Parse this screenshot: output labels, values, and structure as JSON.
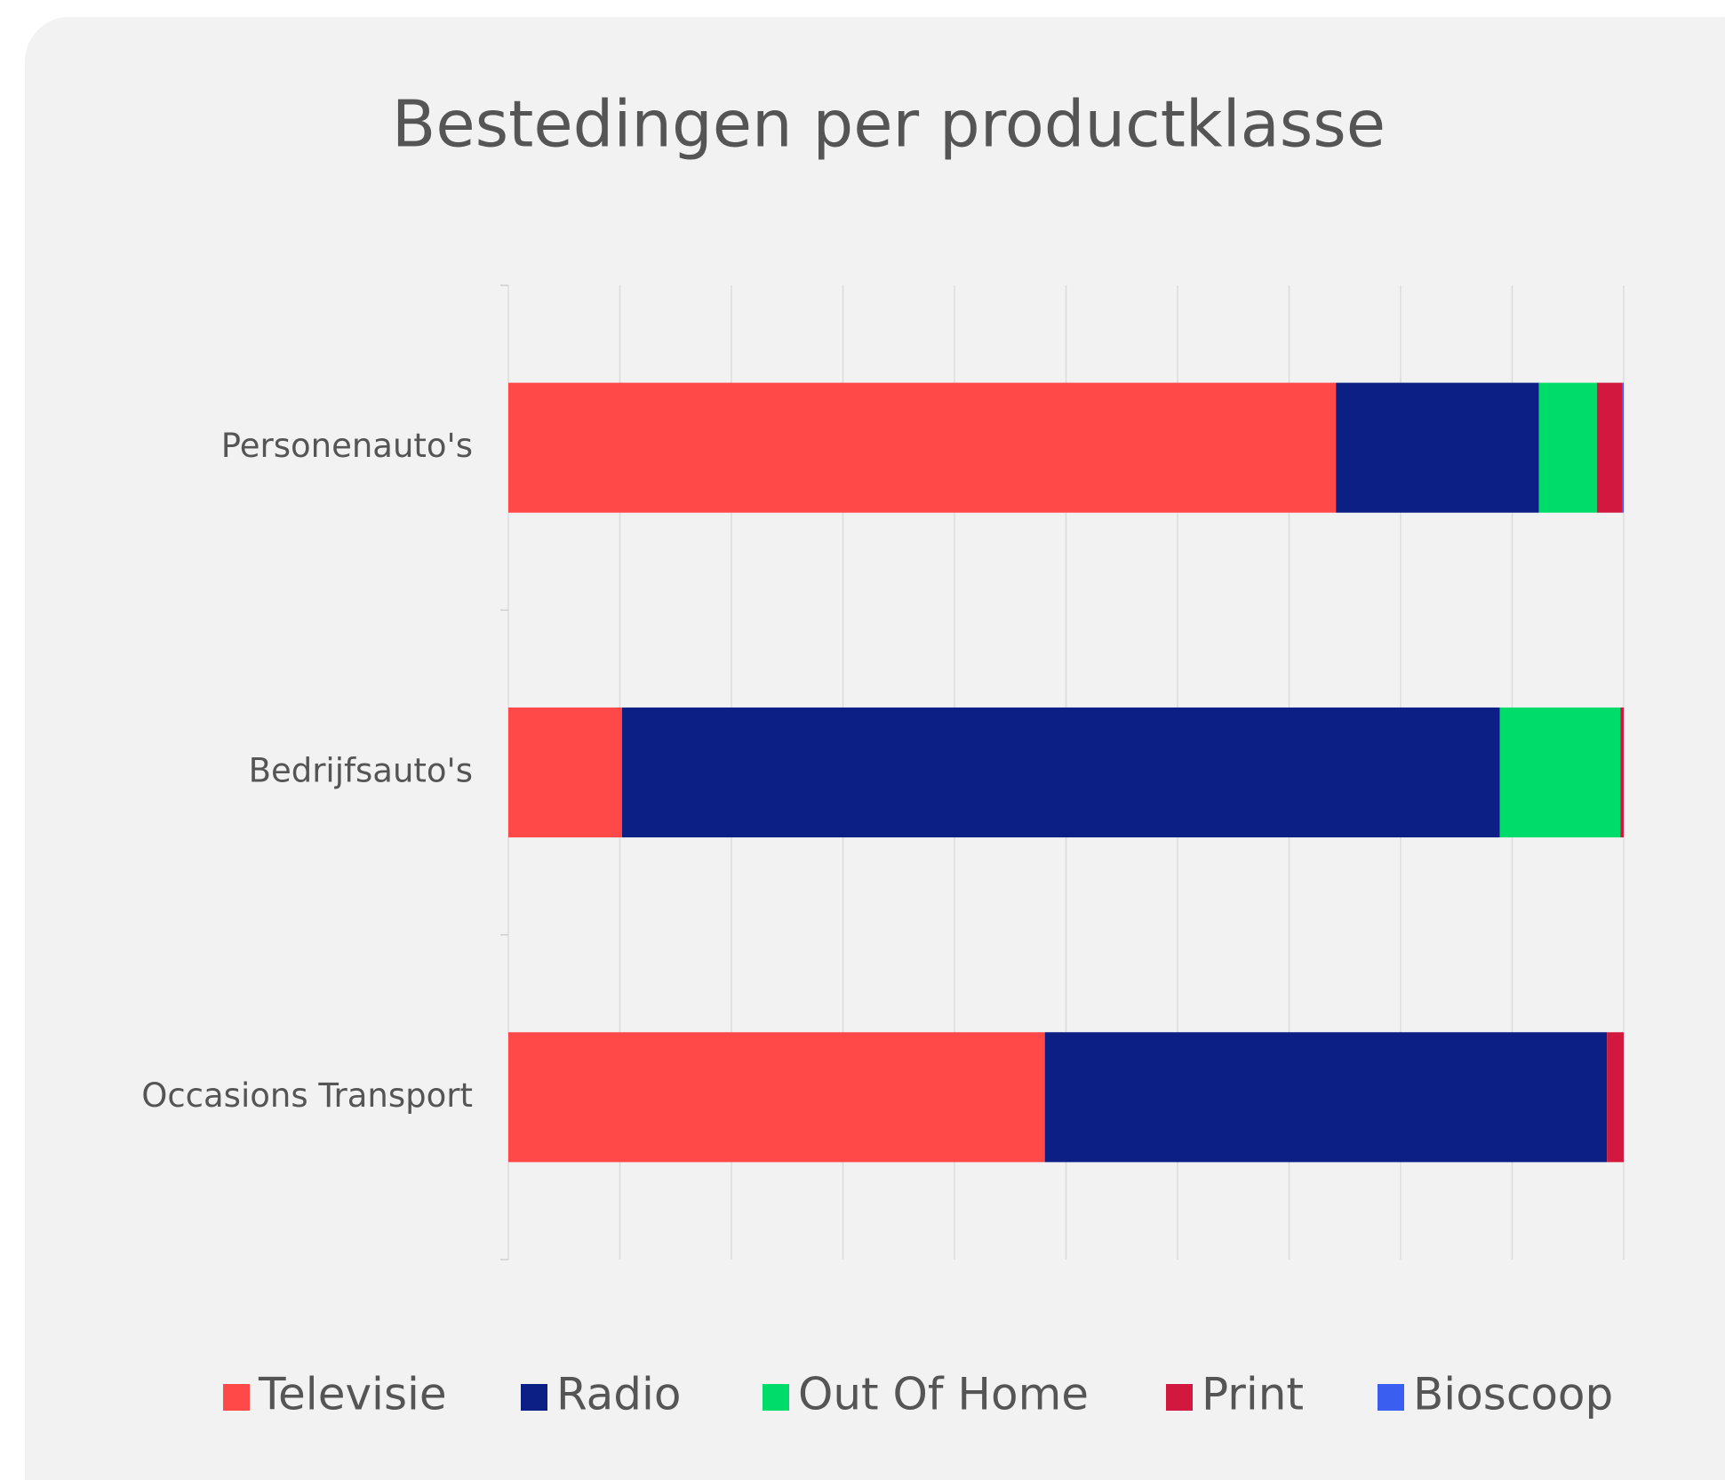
{
  "chart_data": {
    "type": "stacked_bar_horizontal",
    "title": "Bestedingen per productklasse",
    "categories": [
      "Personenauto's",
      "Bedrijfsauto's",
      "Occasions Transport"
    ],
    "series": [
      {
        "name": "Televisie",
        "color": "#ff4848",
        "values": [
          74.2,
          10.2,
          48.1
        ]
      },
      {
        "name": "Radio",
        "color": "#0c1f84",
        "values": [
          18.2,
          78.7,
          50.4
        ]
      },
      {
        "name": "Out Of Home",
        "color": "#00dc6a",
        "values": [
          5.2,
          10.8,
          0
        ]
      },
      {
        "name": "Print",
        "color": "#d2183f",
        "values": [
          2.3,
          0.3,
          1.5
        ]
      },
      {
        "name": "Bioscoop",
        "color": "#3a5ff0",
        "values": [
          0.1,
          0,
          0
        ]
      }
    ],
    "xlim": [
      0,
      100
    ],
    "xticks": [
      0,
      10,
      20,
      30,
      40,
      50,
      60,
      70,
      80,
      90,
      100
    ],
    "grid": true,
    "legend": "bottom"
  }
}
